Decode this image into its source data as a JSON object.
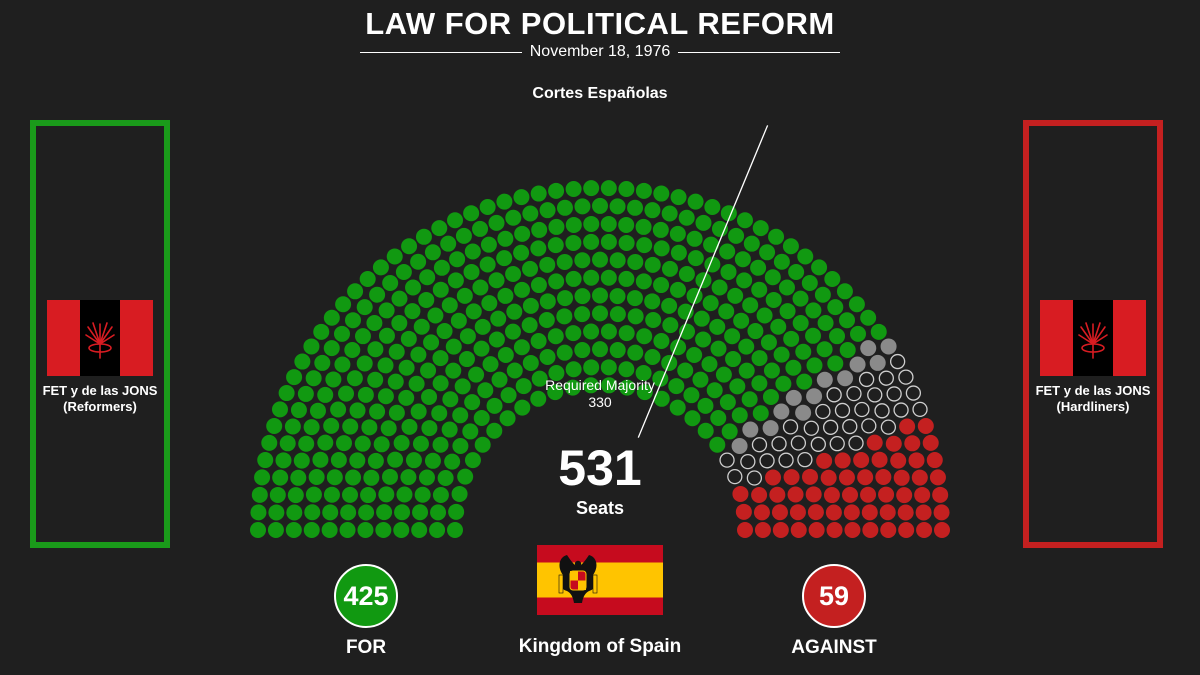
{
  "header": {
    "title": "LAW FOR POLITICAL REFORM",
    "date": "November 18, 1976",
    "subtitle": "Cortes Españolas"
  },
  "parties": {
    "left": {
      "name": "FET y de las JONS",
      "faction": "(Reformers)",
      "color": "#1a9a1a"
    },
    "right": {
      "name": "FET y de las JONS",
      "faction": "(Hardliners)",
      "color": "#c42020"
    }
  },
  "chart_data": {
    "type": "parliament",
    "total_seats": 531,
    "total_label": "Seats",
    "majority": {
      "label": "Required Majority",
      "value": 330
    },
    "series": [
      {
        "name": "FOR",
        "value": 425,
        "color": "#119911",
        "style": "filled"
      },
      {
        "value": 13,
        "color": "#8a8a8a",
        "style": "filled"
      },
      {
        "value": 34,
        "color": "#cfcfcf",
        "style": "outline"
      },
      {
        "name": "AGAINST",
        "value": 59,
        "color": "#c42020",
        "style": "filled"
      }
    ]
  },
  "country": {
    "name": "Kingdom of Spain"
  },
  "colors": {
    "background": "#1f1f1f",
    "flag_red": "#d81c22",
    "flag_black": "#000000",
    "spain_red": "#c60b1e",
    "spain_yellow": "#ffc400"
  }
}
